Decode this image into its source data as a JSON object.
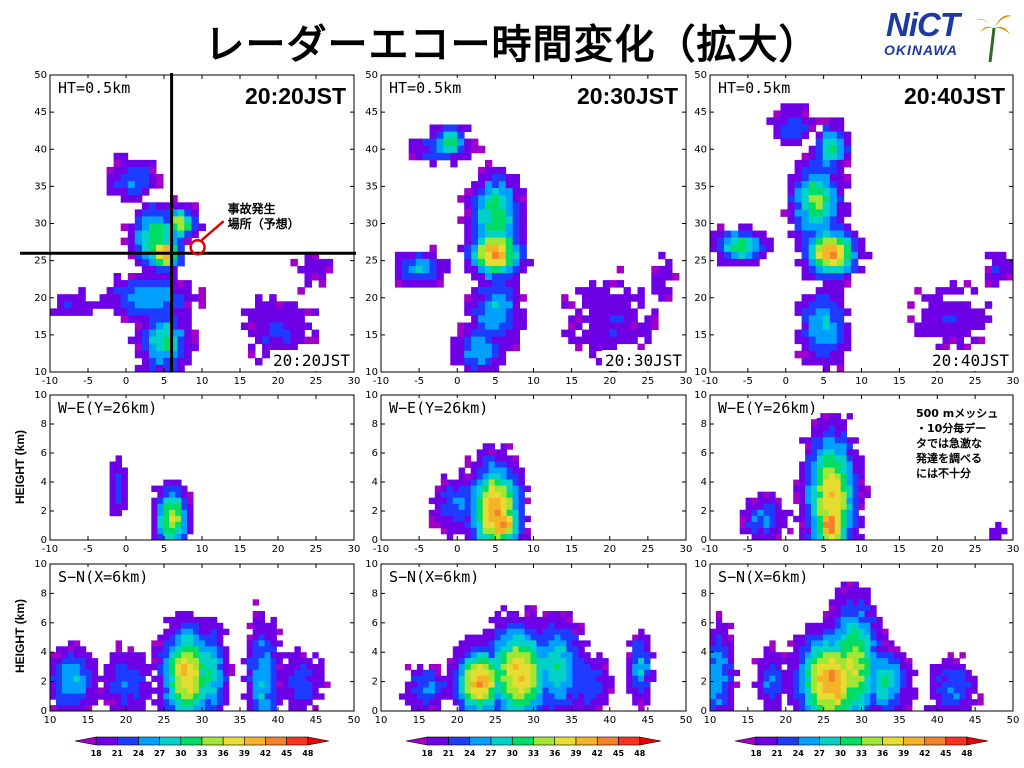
{
  "title": "レーダーエコー時間変化（拡大）",
  "logo": {
    "text": "NiCT",
    "subtext": "OKINAWA"
  },
  "row_labels": {
    "height": "HEIGHT (km)"
  },
  "annotation_accident": [
    "事故発生",
    "場所（予想）"
  ],
  "note_lines": [
    "500 mメッシュ",
    "・10分毎デー",
    "タでは急激な",
    "発達を調べる",
    "には不十分"
  ],
  "panels": [
    {
      "time_big": "20:20JST",
      "time_small": "20:20JST"
    },
    {
      "time_big": "20:30JST",
      "time_small": "20:30JST"
    },
    {
      "time_big": "20:40JST",
      "time_small": "20:40JST"
    }
  ],
  "colorbar": {
    "ticks": [
      "18",
      "21",
      "24",
      "27",
      "30",
      "33",
      "36",
      "39",
      "42",
      "45",
      "48"
    ],
    "colors": [
      "#a000c8",
      "#6e00e6",
      "#1e3cff",
      "#00a0ff",
      "#00d2c8",
      "#00dc64",
      "#a0e632",
      "#e6dc32",
      "#f5b428",
      "#f58228",
      "#ff3020",
      "#e60000"
    ]
  },
  "chart_data": [
    {
      "type": "heatmap",
      "time": "20:20JST",
      "label": "HT=0.5km",
      "xlim": [
        -10,
        30
      ],
      "ylim": [
        10,
        50
      ],
      "xticks": [
        "-10",
        "-5",
        "0",
        "5",
        "10",
        "15",
        "20",
        "25",
        "30"
      ],
      "yticks": [
        "10",
        "15",
        "20",
        "25",
        "30",
        "35",
        "40",
        "45",
        "50"
      ],
      "crosshair": {
        "x": 6,
        "y": 26
      }
    },
    {
      "type": "heatmap",
      "time": "20:30JST",
      "label": "HT=0.5km",
      "xlim": [
        -10,
        30
      ],
      "ylim": [
        10,
        50
      ],
      "xticks": [
        "-10",
        "-5",
        "0",
        "5",
        "10",
        "15",
        "20",
        "25",
        "30"
      ],
      "yticks": [
        "10",
        "15",
        "20",
        "25",
        "30",
        "35",
        "40",
        "45",
        "50"
      ]
    },
    {
      "type": "heatmap",
      "time": "20:40JST",
      "label": "HT=0.5km",
      "xlim": [
        -10,
        30
      ],
      "ylim": [
        10,
        50
      ],
      "xticks": [
        "-10",
        "-5",
        "0",
        "5",
        "10",
        "15",
        "20",
        "25",
        "30"
      ],
      "yticks": [
        "10",
        "15",
        "20",
        "25",
        "30",
        "35",
        "40",
        "45",
        "50"
      ]
    },
    {
      "type": "heatmap",
      "time": "20:20JST",
      "label": "W−E(Y=26km)",
      "xlim": [
        -10,
        30
      ],
      "ylim": [
        0,
        10
      ],
      "xticks": [
        "-10",
        "-5",
        "0",
        "5",
        "10",
        "15",
        "20",
        "25",
        "30"
      ],
      "yticks": [
        "0",
        "2",
        "4",
        "6",
        "8",
        "10"
      ]
    },
    {
      "type": "heatmap",
      "time": "20:30JST",
      "label": "W−E(Y=26km)",
      "xlim": [
        -10,
        30
      ],
      "ylim": [
        0,
        10
      ],
      "xticks": [
        "-10",
        "-5",
        "0",
        "5",
        "10",
        "15",
        "20",
        "25",
        "30"
      ],
      "yticks": [
        "0",
        "2",
        "4",
        "6",
        "8",
        "10"
      ]
    },
    {
      "type": "heatmap",
      "time": "20:40JST",
      "label": "W−E(Y=26km)",
      "xlim": [
        -10,
        30
      ],
      "ylim": [
        0,
        10
      ],
      "xticks": [
        "-10",
        "-5",
        "0",
        "5",
        "10",
        "15",
        "20",
        "25",
        "30"
      ],
      "yticks": [
        "0",
        "2",
        "4",
        "6",
        "8",
        "10"
      ]
    },
    {
      "type": "heatmap",
      "time": "20:20JST",
      "label": "S−N(X=6km)",
      "xlim": [
        10,
        50
      ],
      "ylim": [
        0,
        10
      ],
      "xticks": [
        "10",
        "15",
        "20",
        "25",
        "30",
        "35",
        "40",
        "45",
        "50"
      ],
      "yticks": [
        "0",
        "2",
        "4",
        "6",
        "8",
        "10"
      ]
    },
    {
      "type": "heatmap",
      "time": "20:30JST",
      "label": "S−N(X=6km)",
      "xlim": [
        10,
        50
      ],
      "ylim": [
        0,
        10
      ],
      "xticks": [
        "10",
        "15",
        "20",
        "25",
        "30",
        "35",
        "40",
        "45",
        "50"
      ],
      "yticks": [
        "0",
        "2",
        "4",
        "6",
        "8",
        "10"
      ]
    },
    {
      "type": "heatmap",
      "time": "20:40JST",
      "label": "S−N(X=6km)",
      "xlim": [
        10,
        50
      ],
      "ylim": [
        0,
        10
      ],
      "xticks": [
        "10",
        "15",
        "20",
        "25",
        "30",
        "35",
        "40",
        "45",
        "50"
      ],
      "yticks": [
        "0",
        "2",
        "4",
        "6",
        "8",
        "10"
      ]
    }
  ]
}
